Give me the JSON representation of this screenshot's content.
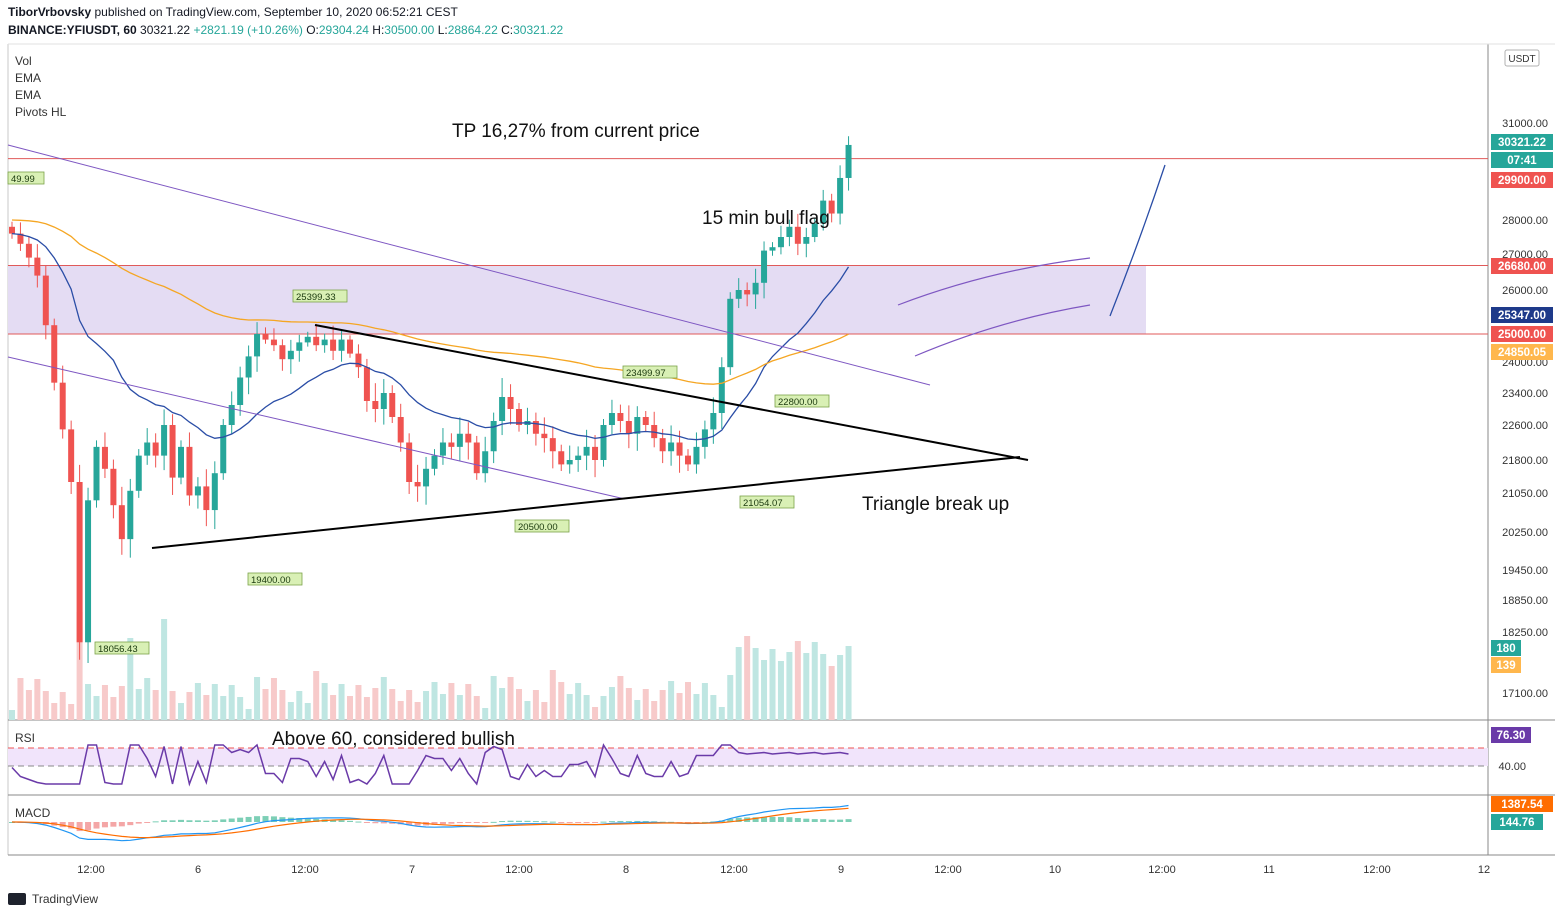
{
  "header": {
    "author": "TiborVrbovsky",
    "published_text": "published on TradingView.com, September 10, 2020 06:52:21 CEST",
    "symbol": "BINANCE:YFIUSDT, 60",
    "last_price": "30321.22",
    "change": "+2821.19 (+10.26%)",
    "o_label": "O:",
    "o_value": "29304.24",
    "h_label": "H:",
    "h_value": "30500.00",
    "l_label": "L:",
    "l_value": "28864.22",
    "c_label": "C:",
    "c_value": "30321.22"
  },
  "indicators": [
    "Vol",
    "EMA",
    "EMA",
    "Pivots HL"
  ],
  "currency_label": "USDT",
  "annotations": {
    "tp": "TP 16,27% from current price",
    "bull_flag": "15 min bull flag",
    "triangle": "Triangle break up",
    "rsi_note": "Above 60, considered bullish"
  },
  "pivot_labels": [
    "49.99",
    "25399.33",
    "23499.97",
    "22800.00",
    "18056.43",
    "19400.00",
    "20500.00",
    "21054.07"
  ],
  "price_axis": {
    "ticks": [
      "31000.00",
      "28000.00",
      "27000.00",
      "26000.00",
      "24000.00",
      "23400.00",
      "22600.00",
      "21800.00",
      "21050.00",
      "20250.00",
      "19450.00",
      "18850.00",
      "18250.00",
      "17100.00"
    ],
    "badges": [
      {
        "text": "30321.22",
        "color": "#26a69a"
      },
      {
        "text": "07:41",
        "color": "#26a69a"
      },
      {
        "text": "29900.00",
        "color": "#ef5350"
      },
      {
        "text": "26680.00",
        "color": "#ef5350"
      },
      {
        "text": "25347.00",
        "color": "#1e3a8a"
      },
      {
        "text": "25000.00",
        "color": "#ef5350"
      },
      {
        "text": "24850.05",
        "color": "#ffb74d"
      },
      {
        "text": "180",
        "color": "#26a69a"
      },
      {
        "text": "139",
        "color": "#ffb74d"
      }
    ]
  },
  "rsi": {
    "label": "RSI",
    "value": "76.30",
    "tick": "40.00"
  },
  "macd": {
    "label": "MACD",
    "value1": "1387.54",
    "value2": "144.76"
  },
  "time_axis": [
    "12:00",
    "6",
    "12:00",
    "7",
    "12:00",
    "8",
    "12:00",
    "9",
    "12:00",
    "10",
    "12:00",
    "11",
    "12:00",
    "12"
  ],
  "footer": {
    "brand": "TradingView"
  },
  "colors": {
    "up": "#26a69a",
    "down": "#ef5350",
    "ema_blue": "#2a4da6",
    "ema_orange": "#f5a623",
    "channel": "#7e57c2",
    "zone": "#e4dcf3"
  },
  "chart_data": {
    "type": "candlestick",
    "x_unit": "hourly candles, Sept 5-10 2020",
    "levels": {
      "resistance_tp": 29900,
      "zone_top": 26680,
      "zone_bottom": 25000
    },
    "triangle": {
      "upper_start": 25399.33,
      "lower_start": 19300,
      "apex": 21800
    },
    "pivots": [
      18056.43,
      19400,
      20500,
      21054.07,
      25399.33,
      23499.97,
      22800
    ],
    "closes": [
      27600,
      27300,
      26900,
      26400,
      25200,
      23600,
      22500,
      21300,
      18056,
      20900,
      22100,
      21600,
      20800,
      20100,
      21100,
      21900,
      22200,
      21900,
      22600,
      21400,
      22100,
      21000,
      21200,
      20700,
      21500,
      22600,
      23100,
      23700,
      24200,
      25000,
      24800,
      24600,
      24100,
      24400,
      24700,
      24900,
      24600,
      24800,
      24400,
      24800,
      24300,
      23900,
      23200,
      23000,
      23400,
      22800,
      22200,
      21300,
      21200,
      21600,
      21900,
      22200,
      22100,
      22400,
      22200,
      21500,
      22000,
      22700,
      23300,
      23000,
      22600,
      22700,
      22400,
      22300,
      22000,
      21700,
      21800,
      21900,
      22100,
      21800,
      22600,
      22900,
      22700,
      22400,
      22800,
      22600,
      22300,
      22000,
      22200,
      21900,
      21700,
      22100,
      22500,
      22900,
      23900,
      25800,
      26000,
      25900,
      26200,
      27100,
      27200,
      27500,
      27800,
      27300,
      27500,
      27900,
      28600,
      28200,
      29300,
      30321.22
    ],
    "rsi_last": 76.3,
    "macd_last": [
      1387.54,
      144.76
    ]
  }
}
